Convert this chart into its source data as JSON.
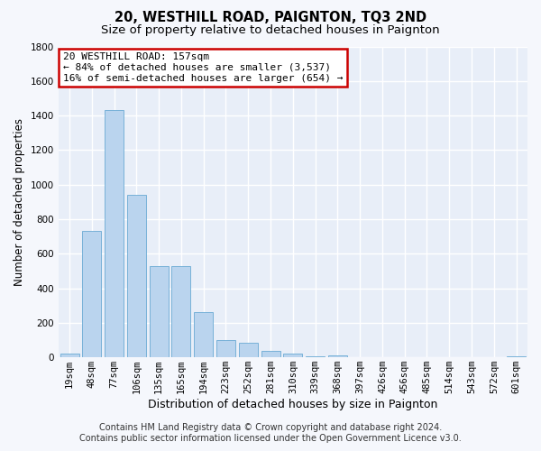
{
  "title1": "20, WESTHILL ROAD, PAIGNTON, TQ3 2ND",
  "title2": "Size of property relative to detached houses in Paignton",
  "xlabel": "Distribution of detached houses by size in Paignton",
  "ylabel": "Number of detached properties",
  "categories": [
    "19sqm",
    "48sqm",
    "77sqm",
    "106sqm",
    "135sqm",
    "165sqm",
    "194sqm",
    "223sqm",
    "252sqm",
    "281sqm",
    "310sqm",
    "339sqm",
    "368sqm",
    "397sqm",
    "426sqm",
    "456sqm",
    "485sqm",
    "514sqm",
    "543sqm",
    "572sqm",
    "601sqm"
  ],
  "values": [
    20,
    730,
    1430,
    940,
    530,
    530,
    260,
    100,
    85,
    35,
    20,
    5,
    10,
    2,
    2,
    2,
    2,
    2,
    2,
    2,
    5
  ],
  "bar_color": "#bad4ee",
  "bar_edge_color": "#6aaad4",
  "annotation_text": "20 WESTHILL ROAD: 157sqm\n← 84% of detached houses are smaller (3,537)\n16% of semi-detached houses are larger (654) →",
  "annotation_box_facecolor": "#ffffff",
  "annotation_box_edgecolor": "#cc0000",
  "ylim": [
    0,
    1800
  ],
  "yticks": [
    0,
    200,
    400,
    600,
    800,
    1000,
    1200,
    1400,
    1600,
    1800
  ],
  "footer1": "Contains HM Land Registry data © Crown copyright and database right 2024.",
  "footer2": "Contains public sector information licensed under the Open Government Licence v3.0.",
  "plot_bg_color": "#e8eef8",
  "fig_bg_color": "#f5f7fc",
  "grid_color": "#ffffff",
  "title1_fontsize": 10.5,
  "title2_fontsize": 9.5,
  "tick_fontsize": 7.5,
  "ylabel_fontsize": 8.5,
  "xlabel_fontsize": 9,
  "annotation_fontsize": 8,
  "footer_fontsize": 7
}
